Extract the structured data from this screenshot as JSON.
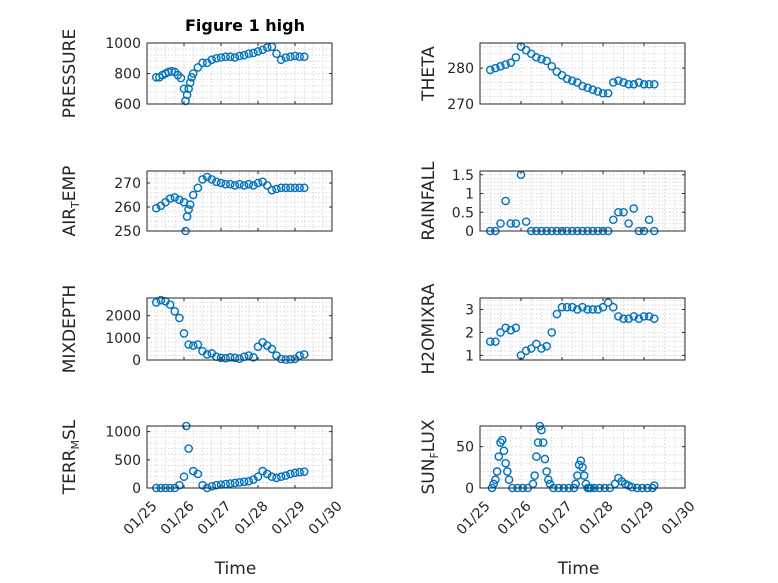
{
  "figure_title": "Figure 1 high",
  "colors": {
    "marker": "#0072bd",
    "axes": "#262626",
    "grid": "#d9d9d9"
  },
  "chart_data": [
    {
      "id": "pressure",
      "type": "scatter",
      "title": "Figure 1 high",
      "ylabel": "PRESSURE",
      "xlabel": "",
      "xlim": [
        "01/25",
        "01/30"
      ],
      "ylim": [
        600,
        1000
      ],
      "yticks": [
        600,
        800,
        1000
      ],
      "ytick_labels": [
        "600",
        "800",
        "1000"
      ],
      "grid": true,
      "series": [
        {
          "x": [
            "01/25 06:00",
            "01/25 08:00",
            "01/25 10:00",
            "01/25 12:00",
            "01/25 14:00",
            "01/25 16:00",
            "01/25 18:00",
            "01/25 20:00",
            "01/25 22:00",
            "01/26 00:00",
            "01/26 01:00",
            "01/26 02:00",
            "01/26 03:00",
            "01/26 04:00",
            "01/26 05:00",
            "01/26 06:00",
            "01/26 09:00",
            "01/26 12:00",
            "01/26 15:00",
            "01/26 18:00",
            "01/26 21:00",
            "01/27 00:00",
            "01/27 03:00",
            "01/27 06:00",
            "01/27 09:00",
            "01/27 12:00",
            "01/27 15:00",
            "01/27 18:00",
            "01/27 21:00",
            "01/28 00:00",
            "01/28 03:00",
            "01/28 06:00",
            "01/28 09:00",
            "01/28 12:00",
            "01/28 15:00",
            "01/28 18:00",
            "01/28 21:00",
            "01/29 00:00",
            "01/29 03:00",
            "01/29 06:00"
          ],
          "y": [
            775,
            775,
            790,
            800,
            810,
            815,
            810,
            790,
            770,
            700,
            620,
            660,
            700,
            740,
            775,
            800,
            840,
            870,
            870,
            890,
            900,
            905,
            910,
            910,
            905,
            915,
            920,
            930,
            935,
            945,
            955,
            970,
            975,
            930,
            890,
            905,
            910,
            915,
            910,
            910
          ]
        }
      ]
    },
    {
      "id": "theta",
      "type": "scatter",
      "ylabel": "THETA",
      "xlabel": "",
      "xlim": [
        "01/25",
        "01/30"
      ],
      "ylim": [
        270,
        287
      ],
      "yticks": [
        270,
        280
      ],
      "ytick_labels": [
        "270",
        "280"
      ],
      "grid": true,
      "series": [
        {
          "x": [
            "01/25 06:00",
            "01/25 09:00",
            "01/25 12:00",
            "01/25 15:00",
            "01/25 18:00",
            "01/25 21:00",
            "01/26 00:00",
            "01/26 03:00",
            "01/26 06:00",
            "01/26 09:00",
            "01/26 12:00",
            "01/26 15:00",
            "01/26 18:00",
            "01/26 21:00",
            "01/27 00:00",
            "01/27 03:00",
            "01/27 06:00",
            "01/27 09:00",
            "01/27 12:00",
            "01/27 15:00",
            "01/27 18:00",
            "01/27 21:00",
            "01/28 00:00",
            "01/28 03:00",
            "01/28 06:00",
            "01/28 09:00",
            "01/28 12:00",
            "01/28 15:00",
            "01/28 18:00",
            "01/28 21:00",
            "01/29 00:00",
            "01/29 03:00",
            "01/29 06:00"
          ],
          "y": [
            279.5,
            280,
            280.5,
            281,
            281.5,
            283,
            286,
            285,
            284,
            283,
            282.5,
            282,
            280.5,
            279,
            278,
            277,
            276.5,
            276,
            275,
            274.5,
            274,
            273.5,
            273,
            273,
            276,
            276.5,
            276,
            275.5,
            275.5,
            276,
            275.5,
            275.5,
            275.5
          ]
        }
      ]
    },
    {
      "id": "air_temp",
      "type": "scatter",
      "ylabel": "AIR_TEMP",
      "xlabel": "",
      "xlim": [
        "01/25",
        "01/30"
      ],
      "ylim": [
        250,
        275
      ],
      "yticks": [
        250,
        260,
        270
      ],
      "ytick_labels": [
        "250",
        "260",
        "270"
      ],
      "grid": true,
      "series": [
        {
          "x": [
            "01/25 06:00",
            "01/25 09:00",
            "01/25 12:00",
            "01/25 15:00",
            "01/25 18:00",
            "01/25 21:00",
            "01/26 00:00",
            "01/26 01:00",
            "01/26 02:00",
            "01/26 03:00",
            "01/26 04:00",
            "01/26 06:00",
            "01/26 09:00",
            "01/26 12:00",
            "01/26 15:00",
            "01/26 18:00",
            "01/26 21:00",
            "01/27 00:00",
            "01/27 03:00",
            "01/27 06:00",
            "01/27 09:00",
            "01/27 12:00",
            "01/27 15:00",
            "01/27 18:00",
            "01/27 21:00",
            "01/28 00:00",
            "01/28 03:00",
            "01/28 06:00",
            "01/28 09:00",
            "01/28 12:00",
            "01/28 15:00",
            "01/28 18:00",
            "01/28 21:00",
            "01/29 00:00",
            "01/29 03:00",
            "01/29 06:00"
          ],
          "y": [
            259.5,
            260.5,
            262,
            263.5,
            264,
            263,
            262,
            250,
            256,
            259,
            261,
            265,
            268,
            271.5,
            272.5,
            271.5,
            270.5,
            270,
            269.5,
            269.5,
            269,
            269.5,
            269,
            269.5,
            269,
            270,
            270.5,
            269,
            267,
            267.5,
            268,
            268,
            268,
            268,
            268,
            268
          ]
        }
      ]
    },
    {
      "id": "rainfall",
      "type": "scatter",
      "ylabel": "RAINFALL",
      "xlabel": "",
      "xlim": [
        "01/25",
        "01/30"
      ],
      "ylim": [
        0,
        1.6
      ],
      "yticks": [
        0,
        0.5,
        1,
        1.5
      ],
      "ytick_labels": [
        "0",
        "0.5",
        "1",
        "1.5"
      ],
      "grid": true,
      "series": [
        {
          "x": [
            "01/25 06:00",
            "01/25 09:00",
            "01/25 12:00",
            "01/25 15:00",
            "01/25 18:00",
            "01/25 21:00",
            "01/26 00:00",
            "01/26 03:00",
            "01/26 06:00",
            "01/26 09:00",
            "01/26 12:00",
            "01/26 15:00",
            "01/26 18:00",
            "01/26 21:00",
            "01/27 00:00",
            "01/27 03:00",
            "01/27 06:00",
            "01/27 09:00",
            "01/27 12:00",
            "01/27 15:00",
            "01/27 18:00",
            "01/27 21:00",
            "01/28 00:00",
            "01/28 03:00",
            "01/28 06:00",
            "01/28 09:00",
            "01/28 12:00",
            "01/28 15:00",
            "01/28 18:00",
            "01/28 21:00",
            "01/29 00:00",
            "01/29 03:00",
            "01/29 06:00"
          ],
          "y": [
            0,
            0,
            0.2,
            0.8,
            0.2,
            0.2,
            1.5,
            0.25,
            0,
            0,
            0,
            0,
            0,
            0,
            0,
            0,
            0,
            0,
            0,
            0,
            0,
            0,
            0,
            0,
            0.3,
            0.5,
            0.5,
            0.2,
            0.6,
            0,
            0,
            0.3,
            0
          ]
        }
      ]
    },
    {
      "id": "mixdepth",
      "type": "scatter",
      "ylabel": "MIXDEPTH",
      "xlabel": "",
      "xlim": [
        "01/25",
        "01/30"
      ],
      "ylim": [
        0,
        2800
      ],
      "yticks": [
        0,
        1000,
        2000
      ],
      "ytick_labels": [
        "0",
        "1000",
        "2000"
      ],
      "grid": true,
      "series": [
        {
          "x": [
            "01/25 06:00",
            "01/25 09:00",
            "01/25 12:00",
            "01/25 15:00",
            "01/25 18:00",
            "01/25 21:00",
            "01/26 00:00",
            "01/26 03:00",
            "01/26 06:00",
            "01/26 09:00",
            "01/26 12:00",
            "01/26 15:00",
            "01/26 18:00",
            "01/26 21:00",
            "01/27 00:00",
            "01/27 03:00",
            "01/27 06:00",
            "01/27 09:00",
            "01/27 12:00",
            "01/27 15:00",
            "01/27 18:00",
            "01/27 21:00",
            "01/28 00:00",
            "01/28 03:00",
            "01/28 06:00",
            "01/28 09:00",
            "01/28 12:00",
            "01/28 15:00",
            "01/28 18:00",
            "01/28 21:00",
            "01/29 00:00",
            "01/29 03:00",
            "01/29 06:00"
          ],
          "y": [
            2600,
            2700,
            2650,
            2500,
            2200,
            1900,
            1200,
            700,
            650,
            700,
            400,
            250,
            300,
            150,
            100,
            80,
            120,
            100,
            60,
            150,
            200,
            120,
            600,
            800,
            650,
            500,
            200,
            50,
            20,
            30,
            50,
            200,
            250
          ]
        }
      ]
    },
    {
      "id": "h2omixra",
      "type": "scatter",
      "ylabel": "H2OMIXRA",
      "xlabel": "",
      "xlim": [
        "01/25",
        "01/30"
      ],
      "ylim": [
        0.8,
        3.5
      ],
      "yticks": [
        1,
        2,
        3
      ],
      "ytick_labels": [
        "1",
        "2",
        "3"
      ],
      "grid": true,
      "series": [
        {
          "x": [
            "01/25 06:00",
            "01/25 09:00",
            "01/25 12:00",
            "01/25 15:00",
            "01/25 18:00",
            "01/25 21:00",
            "01/26 00:00",
            "01/26 03:00",
            "01/26 06:00",
            "01/26 09:00",
            "01/26 12:00",
            "01/26 15:00",
            "01/26 18:00",
            "01/26 21:00",
            "01/27 00:00",
            "01/27 03:00",
            "01/27 06:00",
            "01/27 09:00",
            "01/27 12:00",
            "01/27 15:00",
            "01/27 18:00",
            "01/27 21:00",
            "01/28 00:00",
            "01/28 03:00",
            "01/28 06:00",
            "01/28 09:00",
            "01/28 12:00",
            "01/28 15:00",
            "01/28 18:00",
            "01/28 21:00",
            "01/29 00:00",
            "01/29 03:00",
            "01/29 06:00"
          ],
          "y": [
            1.6,
            1.6,
            2.0,
            2.2,
            2.1,
            2.2,
            1.0,
            1.2,
            1.3,
            1.5,
            1.3,
            1.4,
            2.0,
            2.8,
            3.1,
            3.1,
            3.1,
            3.0,
            3.1,
            3.0,
            3.0,
            3.0,
            3.1,
            3.3,
            3.1,
            2.7,
            2.6,
            2.6,
            2.7,
            2.6,
            2.7,
            2.7,
            2.6
          ]
        }
      ]
    },
    {
      "id": "terr_msl",
      "type": "scatter",
      "ylabel": "TERR_MSL",
      "xlabel": "Time",
      "xlim": [
        "01/25",
        "01/30"
      ],
      "ylim": [
        0,
        1100
      ],
      "yticks": [
        0,
        500,
        1000
      ],
      "ytick_labels": [
        "0",
        "500",
        "1000"
      ],
      "xticks": [
        "01/25",
        "01/26",
        "01/27",
        "01/28",
        "01/29",
        "01/30"
      ],
      "grid": true,
      "series": [
        {
          "x": [
            "01/25 06:00",
            "01/25 09:00",
            "01/25 12:00",
            "01/25 15:00",
            "01/25 18:00",
            "01/25 21:00",
            "01/26 00:00",
            "01/26 01:30",
            "01/26 03:00",
            "01/26 06:00",
            "01/26 09:00",
            "01/26 12:00",
            "01/26 15:00",
            "01/26 18:00",
            "01/26 21:00",
            "01/27 00:00",
            "01/27 03:00",
            "01/27 06:00",
            "01/27 09:00",
            "01/27 12:00",
            "01/27 15:00",
            "01/27 18:00",
            "01/27 21:00",
            "01/28 00:00",
            "01/28 03:00",
            "01/28 06:00",
            "01/28 09:00",
            "01/28 12:00",
            "01/28 15:00",
            "01/28 18:00",
            "01/28 21:00",
            "01/29 00:00",
            "01/29 03:00",
            "01/29 06:00"
          ],
          "y": [
            0,
            0,
            0,
            0,
            0,
            50,
            200,
            1100,
            700,
            300,
            250,
            50,
            0,
            30,
            50,
            60,
            70,
            80,
            90,
            100,
            110,
            120,
            150,
            200,
            300,
            250,
            200,
            180,
            200,
            220,
            250,
            270,
            280,
            290
          ]
        }
      ]
    },
    {
      "id": "sun_flux",
      "type": "scatter",
      "ylabel": "SUN_FLUX",
      "xlabel": "Time",
      "xlim": [
        "01/25",
        "01/30"
      ],
      "ylim": [
        0,
        75
      ],
      "yticks": [
        0,
        50
      ],
      "ytick_labels": [
        "0",
        "50"
      ],
      "xticks": [
        "01/25",
        "01/26",
        "01/27",
        "01/28",
        "01/29",
        "01/30"
      ],
      "grid": true,
      "series": [
        {
          "x": [
            "01/25 07:00",
            "01/25 08:00",
            "01/25 09:00",
            "01/25 10:00",
            "01/25 11:00",
            "01/25 12:00",
            "01/25 13:00",
            "01/25 14:00",
            "01/25 15:00",
            "01/25 16:00",
            "01/25 17:00",
            "01/25 19:00",
            "01/25 22:00",
            "01/26 01:00",
            "01/26 04:00",
            "01/26 07:00",
            "01/26 08:00",
            "01/26 09:00",
            "01/26 10:00",
            "01/26 11:00",
            "01/26 12:00",
            "01/26 13:00",
            "01/26 14:00",
            "01/26 15:00",
            "01/26 16:00",
            "01/26 17:00",
            "01/26 19:00",
            "01/26 22:00",
            "01/27 01:00",
            "01/27 04:00",
            "01/27 07:00",
            "01/27 08:00",
            "01/27 09:00",
            "01/27 10:00",
            "01/27 11:00",
            "01/27 12:00",
            "01/27 13:00",
            "01/27 14:00",
            "01/27 15:00",
            "01/27 16:00",
            "01/27 17:00",
            "01/27 19:00",
            "01/27 22:00",
            "01/28 01:00",
            "01/28 04:00",
            "01/28 07:00",
            "01/28 09:00",
            "01/28 11:00",
            "01/28 13:00",
            "01/28 15:00",
            "01/28 17:00",
            "01/28 20:00",
            "01/28 23:00",
            "01/29 02:00",
            "01/29 05:00",
            "01/29 06:00"
          ],
          "y": [
            0,
            5,
            10,
            20,
            38,
            55,
            58,
            45,
            30,
            20,
            10,
            0,
            0,
            0,
            0,
            5,
            15,
            38,
            55,
            75,
            70,
            55,
            35,
            20,
            10,
            5,
            0,
            0,
            0,
            0,
            0,
            5,
            15,
            28,
            33,
            25,
            15,
            5,
            0,
            0,
            0,
            0,
            0,
            0,
            0,
            5,
            12,
            8,
            5,
            3,
            1,
            0,
            0,
            0,
            0,
            3
          ]
        }
      ]
    }
  ]
}
